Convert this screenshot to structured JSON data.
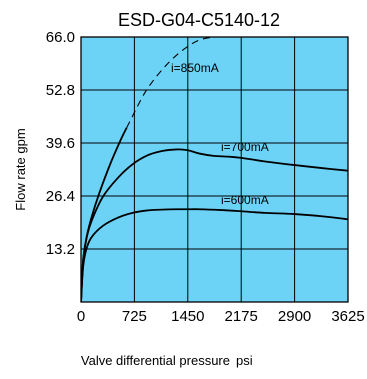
{
  "chart_data": {
    "type": "line",
    "title": "ESD-G04-C5140-12",
    "xlabel": "Valve differential pressure",
    "xlabel_unit": "psi",
    "ylabel": "Flow rate gpm",
    "xlim": [
      0,
      3625
    ],
    "ylim": [
      0,
      66.0
    ],
    "x_ticks": [
      0,
      725,
      1450,
      2175,
      2900,
      3625
    ],
    "x_tick_labels": [
      "0",
      "725",
      "1450",
      "2175",
      "2900",
      "3625"
    ],
    "y_ticks": [
      13.2,
      26.4,
      39.6,
      52.8,
      66.0
    ],
    "y_tick_labels": [
      "13.2",
      "26.4",
      "39.6",
      "52.8",
      "66.0"
    ],
    "grid": true,
    "plot_background": "#6cd3f7",
    "series": [
      {
        "name": "i=850mA",
        "style": "solid-then-dashed",
        "solid_until_x": 620,
        "x": [
          0,
          30,
          80,
          150,
          250,
          400,
          550,
          620,
          700,
          850,
          1000,
          1200,
          1400,
          1600,
          1800
        ],
        "y": [
          0,
          10.5,
          16.5,
          21.5,
          27.2,
          34.5,
          40.8,
          43.4,
          46.3,
          51.6,
          55.6,
          59.8,
          63.0,
          65.2,
          66.0
        ]
      },
      {
        "name": "i=700mA",
        "style": "solid",
        "x": [
          0,
          30,
          80,
          150,
          300,
          500,
          700,
          900,
          1100,
          1300,
          1450,
          1600,
          1800,
          2000,
          2175,
          2500,
          2900,
          3300,
          3625
        ],
        "y": [
          0,
          10.5,
          16.3,
          20.5,
          26.3,
          30.9,
          34.3,
          36.5,
          37.6,
          38.0,
          37.8,
          37.0,
          36.4,
          36.2,
          35.9,
          35.0,
          34.1,
          33.3,
          32.7
        ]
      },
      {
        "name": "i=600mA",
        "style": "solid",
        "x": [
          0,
          30,
          80,
          150,
          300,
          500,
          700,
          900,
          1100,
          1300,
          1450,
          1600,
          1900,
          2175,
          2500,
          2900,
          3300,
          3625
        ],
        "y": [
          0,
          9.0,
          13.6,
          16.3,
          19.0,
          21.0,
          22.2,
          22.8,
          23.0,
          23.1,
          23.1,
          23.1,
          22.9,
          22.6,
          22.2,
          21.9,
          21.3,
          20.6
        ]
      }
    ],
    "annotations": [
      {
        "text": "i=850mA",
        "series": 0
      },
      {
        "text": "i=700mA",
        "series": 1
      },
      {
        "text": "i=600mA",
        "series": 2
      }
    ],
    "colors": {
      "plot_background": "#6cd3f7",
      "lines": "#000000",
      "grid": "#000000"
    }
  }
}
